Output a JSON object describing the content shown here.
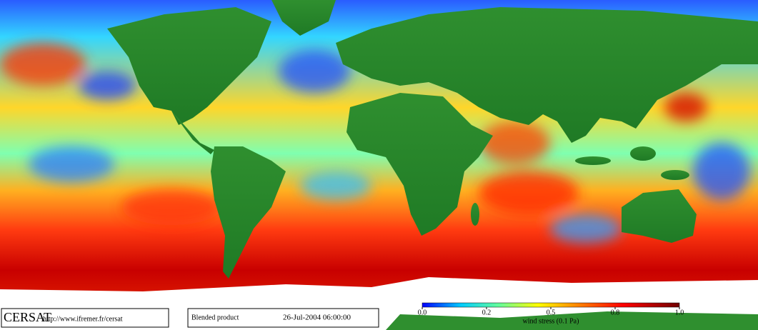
{
  "labels": {
    "logo": "CERSAT",
    "url": "http://www.ifremer.fr/cersat",
    "product": "Blended product",
    "datetime": "26-Jul-2004 06:00:00"
  },
  "colorbar": {
    "ticks": [
      {
        "value": 0,
        "label": "0.0"
      },
      0.2,
      0.5,
      0.8,
      {
        "value": 1,
        "label": "1.0"
      }
    ],
    "label": "wind stress (0.1 Pa)"
  }
}
